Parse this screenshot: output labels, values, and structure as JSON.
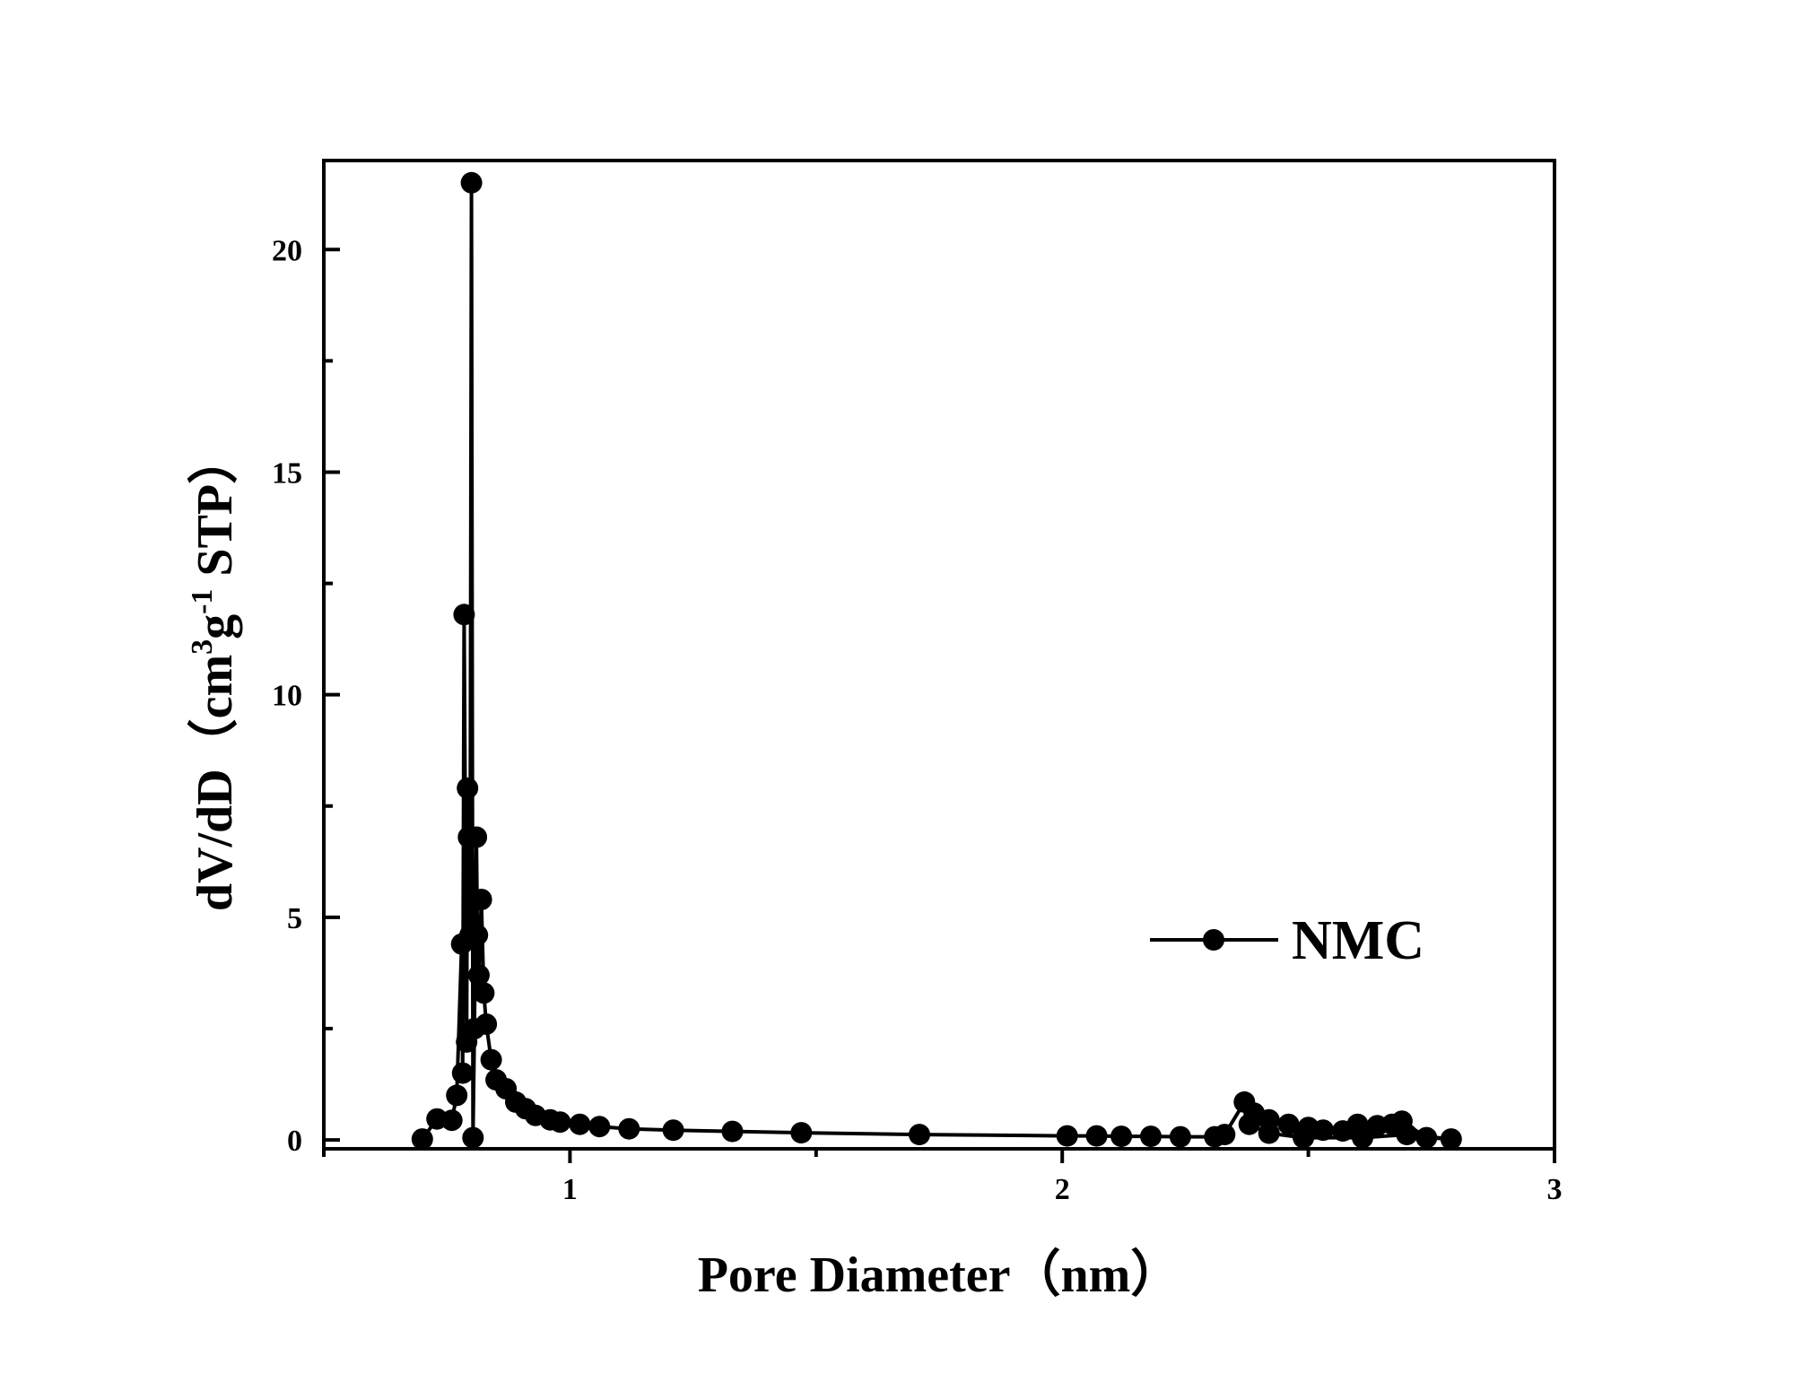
{
  "chart_data": {
    "type": "line",
    "title": "",
    "xlabel": "Pore Diameter（nm）",
    "ylabel": {
      "prefix": "dV/dD（cm",
      "sup1": "3",
      "mid": "g",
      "sup2": "-1",
      "suffix": " STP）"
    },
    "xlim": [
      0.5,
      3.0
    ],
    "ylim": [
      -0.2,
      22.0
    ],
    "xticks": [
      1,
      2,
      3
    ],
    "yticks": [
      0,
      5,
      10,
      15,
      20
    ],
    "grid": false,
    "legend_position": "right",
    "series": [
      {
        "name": "NMC",
        "marker": "circle",
        "color": "#000000",
        "points": [
          [
            0.7,
            0.02
          ],
          [
            0.73,
            0.47
          ],
          [
            0.76,
            0.44
          ],
          [
            0.77,
            1.0
          ],
          [
            0.78,
            4.4
          ],
          [
            0.782,
            1.5
          ],
          [
            0.785,
            11.8
          ],
          [
            0.79,
            2.2
          ],
          [
            0.792,
            7.9
          ],
          [
            0.794,
            6.8
          ],
          [
            0.797,
            4.6
          ],
          [
            0.8,
            21.5
          ],
          [
            0.803,
            0.05
          ],
          [
            0.806,
            2.5
          ],
          [
            0.81,
            6.8
          ],
          [
            0.812,
            4.6
          ],
          [
            0.815,
            3.7
          ],
          [
            0.82,
            5.4
          ],
          [
            0.825,
            3.3
          ],
          [
            0.83,
            2.6
          ],
          [
            0.84,
            1.8
          ],
          [
            0.85,
            1.35
          ],
          [
            0.87,
            1.15
          ],
          [
            0.89,
            0.85
          ],
          [
            0.91,
            0.7
          ],
          [
            0.93,
            0.55
          ],
          [
            0.96,
            0.45
          ],
          [
            0.98,
            0.4
          ],
          [
            1.02,
            0.35
          ],
          [
            1.06,
            0.3
          ],
          [
            1.12,
            0.25
          ],
          [
            1.21,
            0.22
          ],
          [
            1.33,
            0.19
          ],
          [
            1.47,
            0.16
          ],
          [
            1.71,
            0.12
          ],
          [
            2.01,
            0.09
          ],
          [
            2.07,
            0.09
          ],
          [
            2.12,
            0.08
          ],
          [
            2.18,
            0.08
          ],
          [
            2.24,
            0.07
          ],
          [
            2.31,
            0.07
          ],
          [
            2.33,
            0.12
          ],
          [
            2.37,
            0.85
          ],
          [
            2.39,
            0.6
          ],
          [
            2.42,
            0.45
          ],
          [
            2.46,
            0.35
          ],
          [
            2.5,
            0.28
          ],
          [
            2.53,
            0.22
          ],
          [
            2.57,
            0.2
          ],
          [
            2.6,
            0.35
          ],
          [
            2.64,
            0.32
          ],
          [
            2.67,
            0.35
          ],
          [
            2.69,
            0.42
          ],
          [
            2.74,
            0.05
          ],
          [
            2.79,
            0.02
          ],
          [
            2.7,
            0.12
          ],
          [
            2.61,
            0.05
          ],
          [
            2.49,
            0.05
          ],
          [
            2.42,
            0.15
          ],
          [
            2.38,
            0.35
          ]
        ]
      }
    ]
  }
}
